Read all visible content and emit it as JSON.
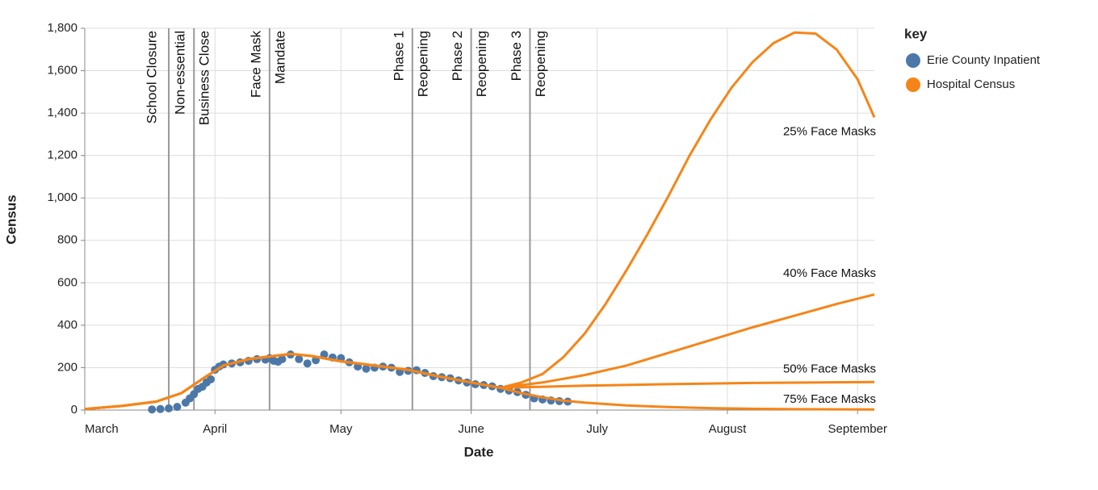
{
  "chart_data": {
    "type": "line",
    "x_label": "Date",
    "y_label": "Census",
    "xlim": [
      1,
      189
    ],
    "xticks": [
      {
        "value": 1,
        "label": "March"
      },
      {
        "value": 32,
        "label": "April"
      },
      {
        "value": 62,
        "label": "May"
      },
      {
        "value": 93,
        "label": "June"
      },
      {
        "value": 123,
        "label": "July"
      },
      {
        "value": 154,
        "label": "August"
      },
      {
        "value": 185,
        "label": "September"
      }
    ],
    "ylim": [
      0,
      1800
    ],
    "yticks": [
      0,
      {
        "value": 200,
        "label": "200"
      },
      {
        "value": 400,
        "label": "400"
      },
      {
        "value": 600,
        "label": "600"
      },
      {
        "value": 800,
        "label": "800"
      },
      {
        "value": 1000,
        "label": "1,000"
      },
      {
        "value": 1200,
        "label": "1,200"
      },
      {
        "value": 1400,
        "label": "1,400"
      },
      {
        "value": 1600,
        "label": "1,600"
      },
      {
        "value": 1800,
        "label": "1,800"
      }
    ],
    "grid": true,
    "legend_title": "key",
    "events": [
      {
        "x": 21,
        "label": [
          "School Closure"
        ]
      },
      {
        "x": 27,
        "label": [
          "Non-essential",
          "Business Close"
        ]
      },
      {
        "x": 45,
        "label": [
          "Face Mask",
          "Mandate"
        ]
      },
      {
        "x": 79,
        "label": [
          "Phase 1",
          "Reopening"
        ]
      },
      {
        "x": 93,
        "label": [
          "Phase 2",
          "Reopening"
        ]
      },
      {
        "x": 107,
        "label": [
          "Phase 3",
          "Reopening"
        ]
      }
    ],
    "series": [
      {
        "name": "Erie County Inpatient",
        "color": "#4c78a8",
        "x": [
          17,
          19,
          21,
          23,
          25,
          26,
          27,
          28,
          29,
          30,
          31,
          32,
          33,
          34,
          36,
          38,
          40,
          42,
          44,
          45,
          46,
          47,
          48,
          50,
          52,
          54,
          56,
          58,
          60,
          62,
          64,
          66,
          68,
          70,
          72,
          74,
          76,
          78,
          80,
          82,
          84,
          86,
          88,
          90,
          92,
          94,
          96,
          98,
          100,
          102,
          104,
          106,
          108,
          110,
          112,
          114,
          116
        ],
        "values": [
          3,
          5,
          8,
          15,
          35,
          55,
          75,
          100,
          110,
          130,
          145,
          190,
          205,
          215,
          220,
          225,
          232,
          240,
          238,
          245,
          232,
          228,
          240,
          262,
          240,
          220,
          235,
          262,
          248,
          245,
          225,
          205,
          195,
          200,
          205,
          200,
          180,
          185,
          188,
          175,
          160,
          155,
          150,
          140,
          130,
          122,
          118,
          112,
          100,
          92,
          85,
          72,
          55,
          50,
          45,
          42,
          40
        ]
      },
      {
        "name": "Hospital Census",
        "color": "#f58518",
        "curves": [
          {
            "label": "25% Face Masks",
            "x": [
              1,
              10,
              18,
              24,
              30,
              34,
              40,
              46,
              50,
              55,
              62,
              70,
              78,
              85,
              93,
              100,
              105,
              110,
              115,
              120,
              125,
              130,
              135,
              140,
              145,
              150,
              155,
              160,
              165,
              170,
              175,
              180,
              185,
              189
            ],
            "values": [
              5,
              20,
              40,
              80,
              160,
              210,
              240,
              255,
              265,
              255,
              230,
              210,
              190,
              160,
              130,
              105,
              130,
              170,
              250,
              360,
              500,
              660,
              830,
              1010,
              1200,
              1370,
              1520,
              1640,
              1730,
              1780,
              1775,
              1700,
              1560,
              1380
            ]
          },
          {
            "label": "40% Face Masks",
            "x": [
              1,
              10,
              18,
              24,
              30,
              34,
              40,
              46,
              50,
              55,
              62,
              70,
              78,
              85,
              93,
              100,
              110,
              120,
              130,
              140,
              150,
              160,
              170,
              180,
              189
            ],
            "values": [
              5,
              20,
              40,
              80,
              160,
              210,
              240,
              255,
              265,
              255,
              230,
              210,
              190,
              160,
              130,
              105,
              130,
              165,
              210,
              270,
              330,
              390,
              445,
              500,
              545
            ]
          },
          {
            "label": "50% Face Masks",
            "x": [
              1,
              10,
              18,
              24,
              30,
              34,
              40,
              46,
              50,
              55,
              62,
              70,
              78,
              85,
              93,
              100,
              110,
              120,
              140,
              160,
              189
            ],
            "values": [
              5,
              20,
              40,
              80,
              160,
              210,
              240,
              255,
              265,
              255,
              230,
              210,
              190,
              160,
              130,
              105,
              110,
              115,
              122,
              128,
              132
            ]
          },
          {
            "label": "75% Face Masks",
            "x": [
              1,
              10,
              18,
              24,
              30,
              34,
              40,
              46,
              50,
              55,
              62,
              70,
              78,
              85,
              93,
              100,
              105,
              110,
              115,
              120,
              130,
              140,
              150,
              160,
              170,
              189
            ],
            "values": [
              5,
              20,
              40,
              80,
              160,
              210,
              240,
              255,
              265,
              255,
              230,
              210,
              190,
              160,
              130,
              105,
              80,
              60,
              45,
              35,
              22,
              14,
              9,
              6,
              4,
              3
            ]
          }
        ]
      }
    ]
  }
}
